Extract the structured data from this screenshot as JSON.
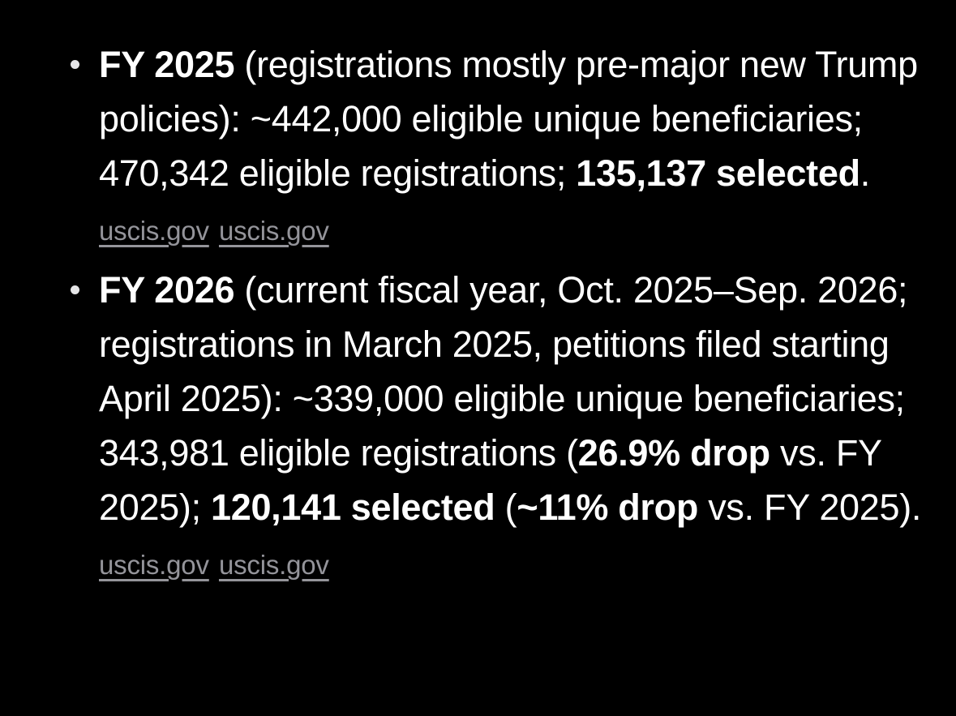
{
  "theme": {
    "background": "#000000",
    "text": "#ffffff",
    "link": "#94949a",
    "bullet": "#e5e5e7"
  },
  "bullets": [
    {
      "lead_bold": "FY 2025",
      "body_1": " (registrations mostly pre-major new Trump policies): ~442,000 eligible unique beneficiaries; 470,342 eligible registrations; ",
      "bold_1": "135,137 selected",
      "body_2": ". ",
      "links": [
        "uscis.gov",
        "uscis.gov"
      ]
    },
    {
      "lead_bold": "FY 2026",
      "body_1": " (current fiscal year, Oct. 2025–Sep. 2026; registrations in March 2025, petitions filed starting April 2025): ~339,000 eligible unique beneficiaries; 343,981 eligible registrations (",
      "bold_1": "26.9% drop",
      "body_2": " vs. FY 2025); ",
      "bold_2": "120,141 selected",
      "body_3": " (",
      "bold_3": "~11% drop",
      "body_4": " vs. FY 2025). ",
      "links": [
        "uscis.gov",
        "uscis.gov"
      ]
    }
  ]
}
